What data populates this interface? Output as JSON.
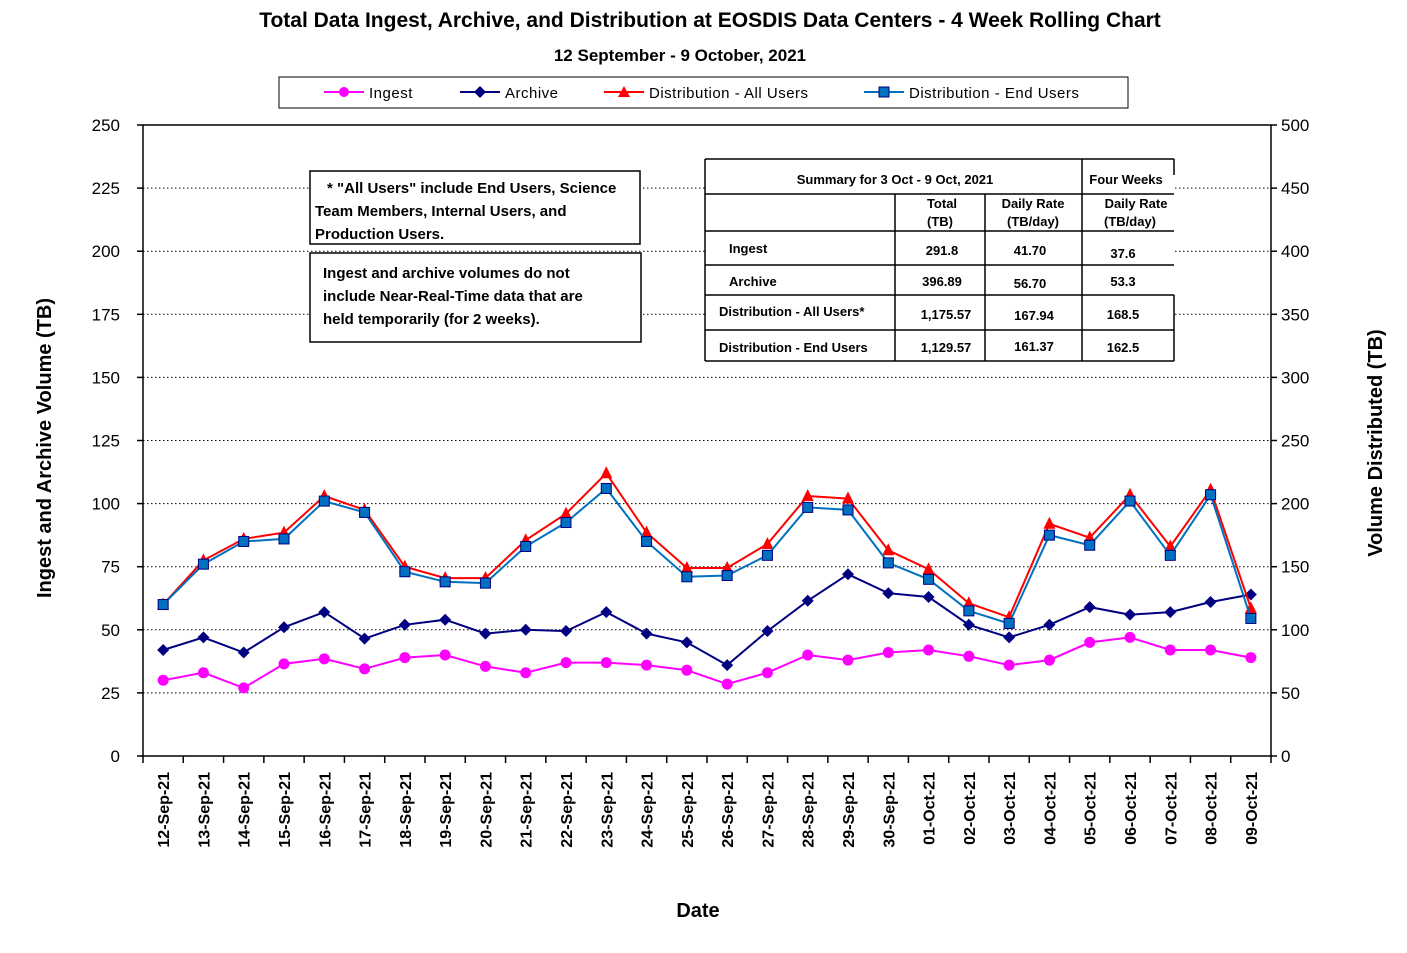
{
  "chart_data": {
    "type": "line",
    "title": "Total Data Ingest, Archive, and  Distribution at EOSDIS Data Centers - 4 Week Rolling Chart",
    "subtitle": "12 September   - 9 October,  2021",
    "xlabel": "Date",
    "ylabel_left": "Ingest and Archive Volume (TB)",
    "ylabel_right": "Volume Distributed (TB)",
    "ylim_left": [
      0,
      250
    ],
    "ylim_right": [
      0,
      500
    ],
    "yticks_left": [
      "0",
      "25",
      "50",
      "75",
      "100",
      "125",
      "150",
      "175",
      "200",
      "225",
      "250"
    ],
    "yticks_right": [
      "0",
      "50",
      "100",
      "150",
      "200",
      "250",
      "300",
      "350",
      "400",
      "450",
      "500"
    ],
    "grid": "horizontal dotted",
    "legend_position": "top",
    "categories": [
      "12-Sep-21",
      "13-Sep-21",
      "14-Sep-21",
      "15-Sep-21",
      "16-Sep-21",
      "17-Sep-21",
      "18-Sep-21",
      "19-Sep-21",
      "20-Sep-21",
      "21-Sep-21",
      "22-Sep-21",
      "23-Sep-21",
      "24-Sep-21",
      "25-Sep-21",
      "26-Sep-21",
      "27-Sep-21",
      "28-Sep-21",
      "29-Sep-21",
      "30-Sep-21",
      "01-Oct-21",
      "02-Oct-21",
      "03-Oct-21",
      "04-Oct-21",
      "05-Oct-21",
      "06-Oct-21",
      "07-Oct-21",
      "08-Oct-21",
      "09-Oct-21"
    ],
    "series": [
      {
        "name": "Ingest",
        "axis": "left",
        "color": "#ff00ff",
        "marker": "circle",
        "values": [
          30,
          33,
          27,
          36.5,
          38.5,
          34.5,
          39,
          40,
          35.5,
          33,
          37,
          37,
          36,
          34,
          28.5,
          33,
          40,
          38,
          41,
          42,
          39.5,
          36,
          38,
          45,
          47,
          42,
          42,
          39
        ]
      },
      {
        "name": "Archive",
        "axis": "left",
        "color": "#000080",
        "marker": "diamond",
        "values": [
          42,
          47,
          41,
          51,
          57,
          46.5,
          52,
          54,
          48.5,
          50,
          49.5,
          57,
          48.5,
          45,
          36,
          49.5,
          61.5,
          72,
          64.5,
          63,
          52,
          47,
          52,
          59,
          56,
          57,
          61,
          64
        ]
      },
      {
        "name": "Distribution - All Users",
        "axis": "right",
        "color": "#ff0000",
        "marker": "triangle",
        "values": [
          120,
          155,
          172,
          177,
          206,
          195,
          150,
          141,
          141,
          171,
          192,
          224,
          177,
          149,
          149,
          168,
          206,
          204,
          163,
          148,
          121,
          110,
          184,
          173,
          207,
          166,
          211,
          117
        ]
      },
      {
        "name": "Distribution - End Users",
        "axis": "right",
        "color": "#0070c0",
        "marker": "square",
        "values": [
          120,
          152,
          170,
          172,
          202,
          193,
          146,
          138,
          137,
          166,
          185,
          212,
          170,
          142,
          143,
          159,
          197,
          195,
          153,
          140,
          115,
          105,
          175,
          167,
          202,
          159,
          207,
          109
        ]
      }
    ]
  },
  "legend": {
    "items": [
      "Ingest",
      "Archive",
      "Distribution - All Users",
      "Distribution - End Users"
    ]
  },
  "notes": {
    "note1": [
      "* \"All Users\" include End Users, Science",
      "Team Members,  Internal Users, and",
      "Production Users."
    ],
    "note2": [
      "Ingest and archive volumes do not",
      "include Near-Real-Time data that are",
      "held temporarily (for 2 weeks)."
    ]
  },
  "summary": {
    "title": "Summary  for  3  Oct   -  9  Oct,  2021",
    "four_weeks": "Four Weeks",
    "col_total": [
      "Total",
      "(TB)"
    ],
    "col_rate": [
      "Daily Rate",
      "(TB/day)"
    ],
    "col_fw_rate": [
      "Daily Rate",
      "(TB/day)"
    ],
    "rows": [
      {
        "label": "Ingest",
        "total": "291.8",
        "rate": "41.70",
        "fw": "37.6"
      },
      {
        "label": "Archive",
        "total": "396.89",
        "rate": "56.70",
        "fw": "53.3"
      },
      {
        "label": "Distribution - All Users*",
        "total": "1,175.57",
        "rate": "167.94",
        "fw": "168.5"
      },
      {
        "label": "Distribution - End Users",
        "total": "1,129.57",
        "rate": "161.37",
        "fw": "162.5"
      }
    ]
  }
}
